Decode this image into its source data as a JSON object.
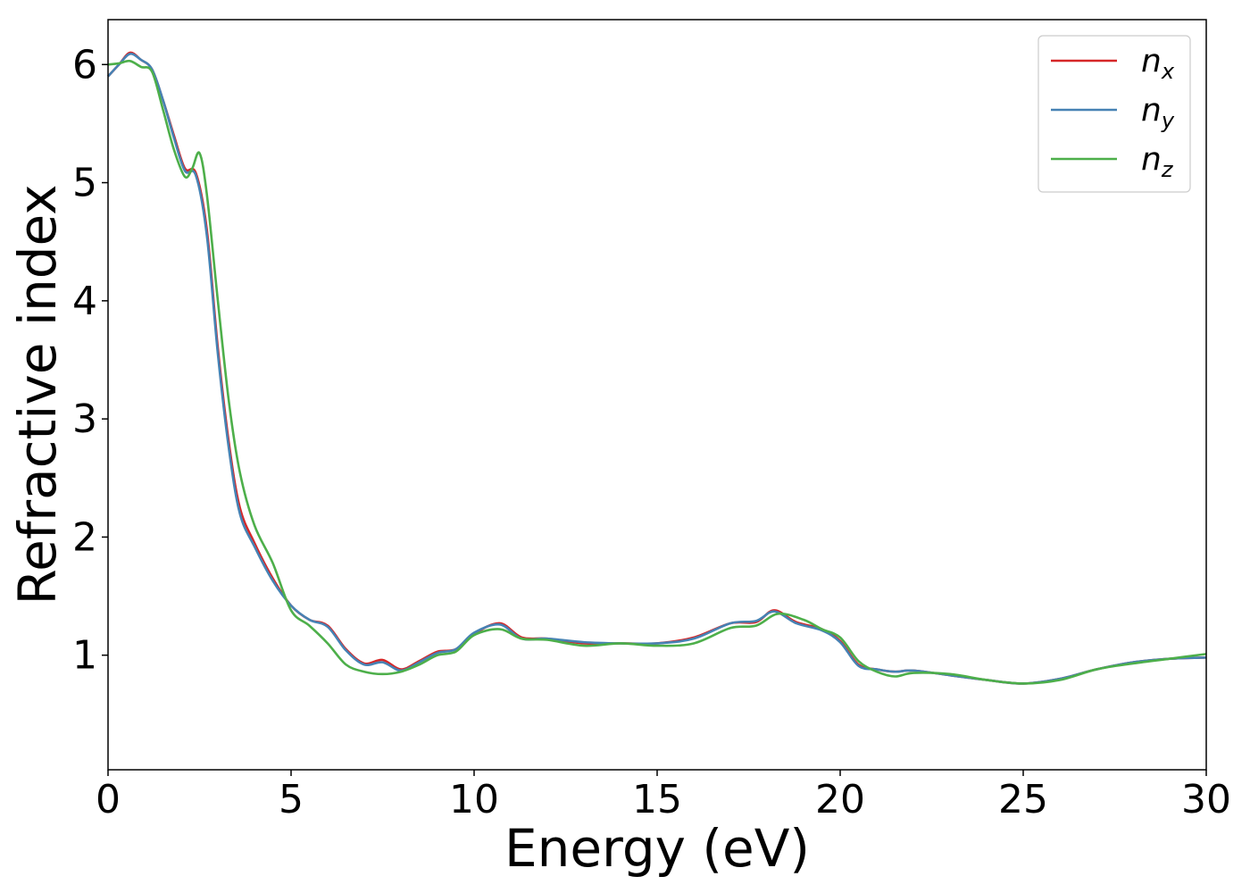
{
  "chart_data": {
    "type": "line",
    "title": "",
    "xlabel": "Energy (eV)",
    "ylabel": "Refractive index",
    "xlim": [
      0,
      30
    ],
    "ylim": [
      0.03,
      6.38
    ],
    "xticks": [
      0,
      5,
      10,
      15,
      20,
      25,
      30
    ],
    "xtick_labels": [
      "0",
      "5",
      "10",
      "15",
      "20",
      "25",
      "30"
    ],
    "yticks": [
      1,
      2,
      3,
      4,
      5,
      6
    ],
    "ytick_labels": [
      "1",
      "2",
      "3",
      "4",
      "5",
      "6"
    ],
    "grid": false,
    "legend": {
      "placement": "top-right"
    },
    "series": [
      {
        "name": "n",
        "subscript": "x",
        "color": "#d62728",
        "x": [
          0,
          0.3,
          0.6,
          0.9,
          1.2,
          1.5,
          1.8,
          2.1,
          2.4,
          2.7,
          3.0,
          3.3,
          3.6,
          4.0,
          4.5,
          5.0,
          5.5,
          6.0,
          6.5,
          7.0,
          7.5,
          8.0,
          8.5,
          9.0,
          9.5,
          10.0,
          10.7,
          11.3,
          12.0,
          13.0,
          14.0,
          15.0,
          16.0,
          17.0,
          17.7,
          18.2,
          18.8,
          19.5,
          20.0,
          20.5,
          21.0,
          21.5,
          22.0,
          23.0,
          24.0,
          25.0,
          26.0,
          27.0,
          28.0,
          29.0,
          30.0
        ],
        "y": [
          5.9,
          6.0,
          6.1,
          6.04,
          5.96,
          5.7,
          5.4,
          5.12,
          5.08,
          4.6,
          3.6,
          2.8,
          2.25,
          1.95,
          1.65,
          1.42,
          1.3,
          1.25,
          1.05,
          0.93,
          0.96,
          0.88,
          0.95,
          1.03,
          1.05,
          1.18,
          1.27,
          1.15,
          1.14,
          1.1,
          1.1,
          1.1,
          1.15,
          1.27,
          1.28,
          1.38,
          1.28,
          1.22,
          1.12,
          0.92,
          0.88,
          0.86,
          0.87,
          0.83,
          0.79,
          0.76,
          0.8,
          0.88,
          0.94,
          0.97,
          0.98
        ]
      },
      {
        "name": "n",
        "subscript": "y",
        "color": "#4682b4",
        "x": [
          0,
          0.3,
          0.6,
          0.9,
          1.2,
          1.5,
          1.8,
          2.1,
          2.4,
          2.7,
          3.0,
          3.3,
          3.6,
          4.0,
          4.5,
          5.0,
          5.5,
          6.0,
          6.5,
          7.0,
          7.5,
          8.0,
          8.5,
          9.0,
          9.5,
          10.0,
          10.7,
          11.3,
          12.0,
          13.0,
          14.0,
          15.0,
          16.0,
          17.0,
          17.7,
          18.2,
          18.8,
          19.5,
          20.0,
          20.5,
          21.0,
          21.5,
          22.0,
          23.0,
          24.0,
          25.0,
          26.0,
          27.0,
          28.0,
          29.0,
          30.0
        ],
        "y": [
          5.9,
          6.0,
          6.09,
          6.04,
          5.96,
          5.7,
          5.38,
          5.1,
          5.06,
          4.55,
          3.55,
          2.75,
          2.2,
          1.92,
          1.63,
          1.42,
          1.3,
          1.24,
          1.04,
          0.92,
          0.94,
          0.87,
          0.94,
          1.02,
          1.05,
          1.19,
          1.26,
          1.14,
          1.14,
          1.11,
          1.1,
          1.1,
          1.14,
          1.27,
          1.29,
          1.37,
          1.27,
          1.21,
          1.11,
          0.91,
          0.88,
          0.86,
          0.87,
          0.83,
          0.79,
          0.76,
          0.8,
          0.88,
          0.94,
          0.97,
          0.98
        ]
      },
      {
        "name": "n",
        "subscript": "z",
        "color": "#4daf4a",
        "x": [
          0,
          0.3,
          0.6,
          0.9,
          1.2,
          1.5,
          1.8,
          2.1,
          2.3,
          2.5,
          2.7,
          3.0,
          3.3,
          3.6,
          4.0,
          4.5,
          5.0,
          5.5,
          6.0,
          6.5,
          7.0,
          7.5,
          8.0,
          8.5,
          9.0,
          9.5,
          10.0,
          10.7,
          11.3,
          12.0,
          13.0,
          14.0,
          15.0,
          16.0,
          17.0,
          17.7,
          18.3,
          19.0,
          19.5,
          20.0,
          20.5,
          21.0,
          21.5,
          22.0,
          23.0,
          24.0,
          25.0,
          26.0,
          27.0,
          28.0,
          29.0,
          30.0
        ],
        "y": [
          6.0,
          6.01,
          6.03,
          5.98,
          5.94,
          5.62,
          5.28,
          5.05,
          5.12,
          5.25,
          4.9,
          4.0,
          3.15,
          2.55,
          2.1,
          1.78,
          1.38,
          1.25,
          1.1,
          0.92,
          0.86,
          0.84,
          0.86,
          0.92,
          1.0,
          1.03,
          1.17,
          1.22,
          1.14,
          1.13,
          1.08,
          1.1,
          1.08,
          1.1,
          1.23,
          1.25,
          1.35,
          1.3,
          1.22,
          1.15,
          0.95,
          0.86,
          0.82,
          0.85,
          0.84,
          0.79,
          0.76,
          0.79,
          0.88,
          0.93,
          0.97,
          1.01
        ]
      }
    ]
  }
}
